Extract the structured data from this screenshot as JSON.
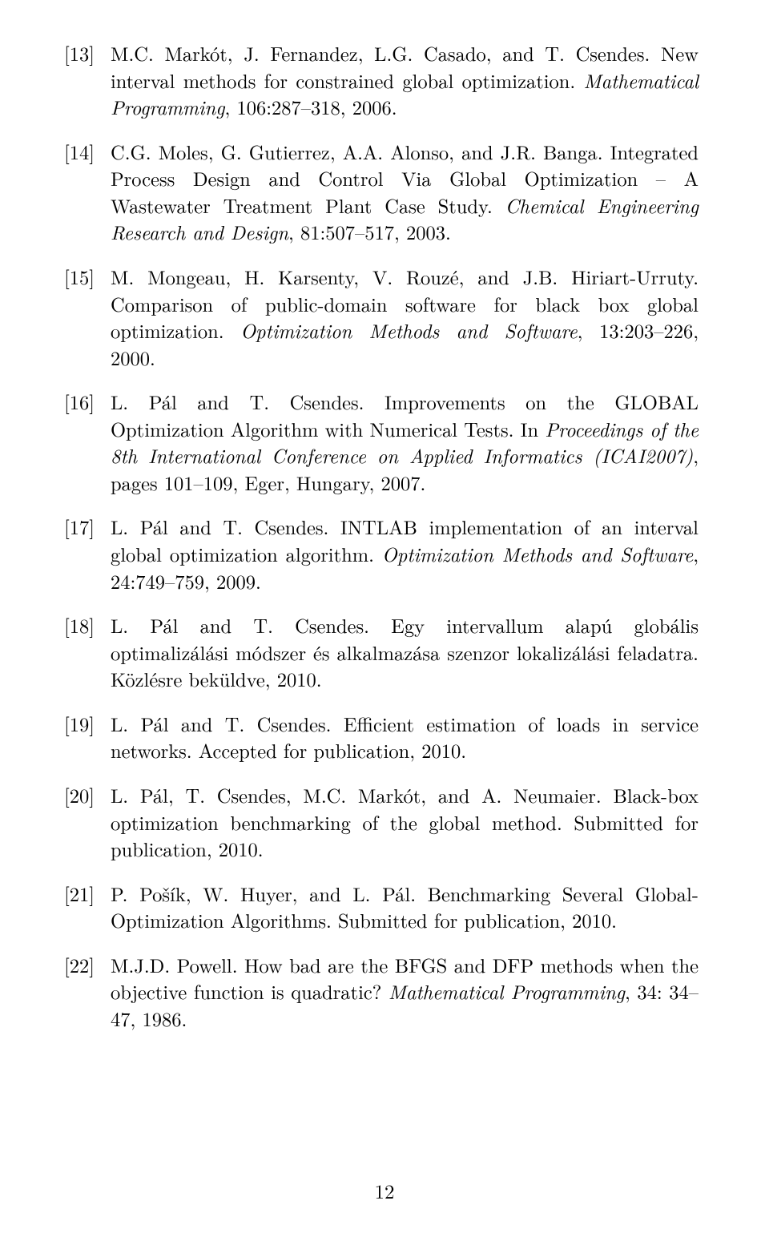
{
  "page_number": "12",
  "refs": [
    {
      "num": "[13]",
      "html": "M.C. Markót, J. Fernandez, L.G. Casado, and T. Csendes. New interval methods for constrained global optimization. <em>Mathematical Programming</em>, 106:287–318, 2006."
    },
    {
      "num": "[14]",
      "html": "C.G. Moles, G. Gutierrez, A.A. Alonso, and J.R. Banga. Integrated Process Design and Control Via Global Optimization – A Wastewater Treatment Plant Case Study. <em>Chemical Engineering Research and Design</em>, 81:507–517, 2003."
    },
    {
      "num": "[15]",
      "html": "M. Mongeau, H. Karsenty, V. Rouzé, and J.B. Hiriart-Urruty. Comparison of public-domain software for black box global optimization. <em>Optimization Methods and Software</em>, 13:203–226, 2000."
    },
    {
      "num": "[16]",
      "html": "L. Pál and T. Csendes. Improvements on the GLOBAL Optimization Algorithm with Numerical Tests. In <em>Proceedings of the 8th International Conference on Applied Informatics (ICAI2007)</em>, pages 101–109, Eger, Hungary, 2007."
    },
    {
      "num": "[17]",
      "html": "L. Pál and T. Csendes. INTLAB implementation of an interval global optimization algorithm. <em>Optimization Methods and Software</em>, 24:749–759, 2009."
    },
    {
      "num": "[18]",
      "html": "L. Pál and T. Csendes. Egy intervallum alapú globális optimalizálási módszer és alkalmazása szenzor lokalizálási feladatra. Közlésre beküldve, 2010."
    },
    {
      "num": "[19]",
      "html": "L. Pál and T. Csendes. Efficient estimation of loads in service networks. Accepted for publication, 2010."
    },
    {
      "num": "[20]",
      "html": "L. Pál, T. Csendes, M.C. Markót, and A. Neumaier. Black-box optimization benchmarking of the global method. Submitted for publication, 2010."
    },
    {
      "num": "[21]",
      "html": "P. Pošík, W. Huyer, and L. Pál. Benchmarking Several Global-Optimization Algorithms. Submitted for publication, 2010."
    },
    {
      "num": "[22]",
      "html": "M.J.D. Powell. How bad are the BFGS and DFP methods when the objective function is quadratic? <em>Mathematical Programming</em>, 34: 34–47, 1986."
    }
  ]
}
